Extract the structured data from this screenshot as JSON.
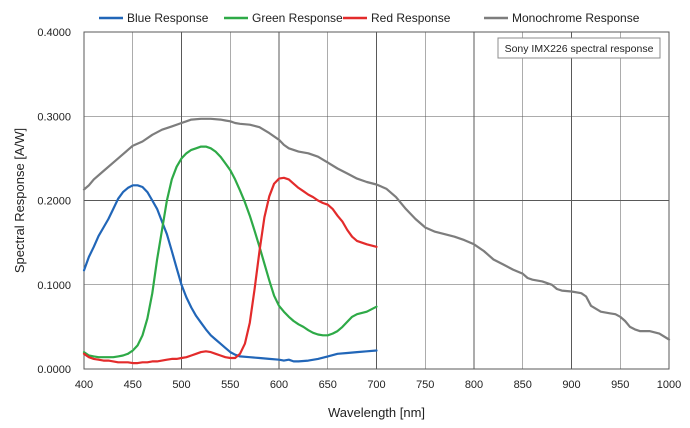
{
  "chart_data": {
    "type": "line",
    "title": "",
    "annotation": "Sony IMX226 spectral response",
    "xlabel": "Wavelength [nm]",
    "ylabel": "Spectral Response [A/W]",
    "xlim": [
      400,
      1000
    ],
    "ylim": [
      0,
      0.4
    ],
    "x_ticks": [
      400,
      450,
      500,
      550,
      600,
      650,
      700,
      750,
      800,
      850,
      900,
      950,
      1000
    ],
    "y_ticks": [
      0,
      0.1,
      0.2,
      0.3,
      0.4
    ],
    "x_tick_labels": [
      "400",
      "450",
      "500",
      "550",
      "600",
      "650",
      "700",
      "750",
      "800",
      "850",
      "900",
      "950",
      "1000"
    ],
    "y_tick_labels": [
      "0.0000",
      "0.1000",
      "0.2000",
      "0.3000",
      "0.4000"
    ],
    "grid": true,
    "legend_position": "top",
    "series": [
      {
        "name": "Blue Response",
        "color": "#2166b8",
        "points": [
          [
            400,
            0.117
          ],
          [
            405,
            0.133
          ],
          [
            410,
            0.145
          ],
          [
            415,
            0.158
          ],
          [
            420,
            0.168
          ],
          [
            425,
            0.178
          ],
          [
            430,
            0.19
          ],
          [
            435,
            0.202
          ],
          [
            440,
            0.21
          ],
          [
            445,
            0.215
          ],
          [
            450,
            0.218
          ],
          [
            455,
            0.218
          ],
          [
            460,
            0.216
          ],
          [
            465,
            0.21
          ],
          [
            470,
            0.2
          ],
          [
            475,
            0.19
          ],
          [
            480,
            0.175
          ],
          [
            485,
            0.16
          ],
          [
            490,
            0.14
          ],
          [
            495,
            0.12
          ],
          [
            500,
            0.1
          ],
          [
            505,
            0.085
          ],
          [
            510,
            0.073
          ],
          [
            515,
            0.063
          ],
          [
            520,
            0.055
          ],
          [
            525,
            0.047
          ],
          [
            530,
            0.04
          ],
          [
            535,
            0.035
          ],
          [
            540,
            0.03
          ],
          [
            545,
            0.025
          ],
          [
            550,
            0.02
          ],
          [
            555,
            0.017
          ],
          [
            560,
            0.015
          ],
          [
            570,
            0.014
          ],
          [
            580,
            0.013
          ],
          [
            590,
            0.012
          ],
          [
            600,
            0.011
          ],
          [
            605,
            0.01
          ],
          [
            610,
            0.011
          ],
          [
            615,
            0.009
          ],
          [
            620,
            0.009
          ],
          [
            630,
            0.01
          ],
          [
            640,
            0.012
          ],
          [
            650,
            0.015
          ],
          [
            660,
            0.018
          ],
          [
            670,
            0.019
          ],
          [
            680,
            0.02
          ],
          [
            690,
            0.021
          ],
          [
            700,
            0.022
          ]
        ]
      },
      {
        "name": "Green Response",
        "color": "#2eaa47",
        "points": [
          [
            400,
            0.02
          ],
          [
            405,
            0.016
          ],
          [
            410,
            0.015
          ],
          [
            415,
            0.014
          ],
          [
            420,
            0.014
          ],
          [
            425,
            0.014
          ],
          [
            430,
            0.014
          ],
          [
            435,
            0.015
          ],
          [
            440,
            0.016
          ],
          [
            445,
            0.018
          ],
          [
            450,
            0.022
          ],
          [
            455,
            0.028
          ],
          [
            460,
            0.04
          ],
          [
            465,
            0.06
          ],
          [
            470,
            0.09
          ],
          [
            475,
            0.13
          ],
          [
            480,
            0.165
          ],
          [
            485,
            0.2
          ],
          [
            490,
            0.225
          ],
          [
            495,
            0.24
          ],
          [
            500,
            0.25
          ],
          [
            505,
            0.256
          ],
          [
            510,
            0.26
          ],
          [
            515,
            0.262
          ],
          [
            520,
            0.264
          ],
          [
            525,
            0.264
          ],
          [
            530,
            0.262
          ],
          [
            535,
            0.258
          ],
          [
            540,
            0.252
          ],
          [
            545,
            0.244
          ],
          [
            550,
            0.236
          ],
          [
            555,
            0.225
          ],
          [
            560,
            0.212
          ],
          [
            565,
            0.198
          ],
          [
            570,
            0.182
          ],
          [
            575,
            0.164
          ],
          [
            580,
            0.145
          ],
          [
            585,
            0.125
          ],
          [
            590,
            0.105
          ],
          [
            595,
            0.087
          ],
          [
            600,
            0.075
          ],
          [
            605,
            0.068
          ],
          [
            610,
            0.062
          ],
          [
            615,
            0.057
          ],
          [
            620,
            0.053
          ],
          [
            625,
            0.05
          ],
          [
            630,
            0.046
          ],
          [
            635,
            0.043
          ],
          [
            640,
            0.041
          ],
          [
            645,
            0.04
          ],
          [
            650,
            0.04
          ],
          [
            655,
            0.042
          ],
          [
            660,
            0.045
          ],
          [
            665,
            0.05
          ],
          [
            670,
            0.056
          ],
          [
            675,
            0.062
          ],
          [
            680,
            0.065
          ],
          [
            690,
            0.068
          ],
          [
            700,
            0.074
          ]
        ]
      },
      {
        "name": "Red Response",
        "color": "#e32b2b",
        "points": [
          [
            400,
            0.018
          ],
          [
            405,
            0.014
          ],
          [
            410,
            0.012
          ],
          [
            415,
            0.011
          ],
          [
            420,
            0.01
          ],
          [
            425,
            0.01
          ],
          [
            430,
            0.009
          ],
          [
            435,
            0.008
          ],
          [
            440,
            0.008
          ],
          [
            445,
            0.008
          ],
          [
            450,
            0.007
          ],
          [
            455,
            0.007
          ],
          [
            460,
            0.008
          ],
          [
            465,
            0.008
          ],
          [
            470,
            0.009
          ],
          [
            475,
            0.009
          ],
          [
            480,
            0.01
          ],
          [
            485,
            0.011
          ],
          [
            490,
            0.012
          ],
          [
            495,
            0.012
          ],
          [
            500,
            0.013
          ],
          [
            505,
            0.014
          ],
          [
            510,
            0.016
          ],
          [
            515,
            0.018
          ],
          [
            520,
            0.02
          ],
          [
            525,
            0.021
          ],
          [
            530,
            0.02
          ],
          [
            535,
            0.018
          ],
          [
            540,
            0.016
          ],
          [
            545,
            0.014
          ],
          [
            550,
            0.013
          ],
          [
            555,
            0.013
          ],
          [
            560,
            0.018
          ],
          [
            565,
            0.03
          ],
          [
            570,
            0.055
          ],
          [
            575,
            0.095
          ],
          [
            580,
            0.14
          ],
          [
            585,
            0.18
          ],
          [
            590,
            0.205
          ],
          [
            595,
            0.22
          ],
          [
            600,
            0.226
          ],
          [
            605,
            0.227
          ],
          [
            610,
            0.225
          ],
          [
            615,
            0.22
          ],
          [
            620,
            0.215
          ],
          [
            625,
            0.211
          ],
          [
            630,
            0.207
          ],
          [
            635,
            0.204
          ],
          [
            640,
            0.2
          ],
          [
            645,
            0.197
          ],
          [
            650,
            0.195
          ],
          [
            655,
            0.19
          ],
          [
            660,
            0.182
          ],
          [
            665,
            0.175
          ],
          [
            670,
            0.165
          ],
          [
            675,
            0.157
          ],
          [
            680,
            0.152
          ],
          [
            690,
            0.148
          ],
          [
            700,
            0.145
          ]
        ]
      },
      {
        "name": "Monochrome Response",
        "color": "#7d7d7d",
        "points": [
          [
            400,
            0.213
          ],
          [
            405,
            0.218
          ],
          [
            410,
            0.225
          ],
          [
            420,
            0.235
          ],
          [
            430,
            0.245
          ],
          [
            440,
            0.255
          ],
          [
            450,
            0.265
          ],
          [
            460,
            0.27
          ],
          [
            470,
            0.278
          ],
          [
            480,
            0.284
          ],
          [
            490,
            0.288
          ],
          [
            500,
            0.292
          ],
          [
            505,
            0.294
          ],
          [
            510,
            0.296
          ],
          [
            520,
            0.297
          ],
          [
            530,
            0.297
          ],
          [
            540,
            0.296
          ],
          [
            545,
            0.295
          ],
          [
            550,
            0.294
          ],
          [
            555,
            0.292
          ],
          [
            560,
            0.291
          ],
          [
            570,
            0.29
          ],
          [
            580,
            0.287
          ],
          [
            590,
            0.28
          ],
          [
            600,
            0.272
          ],
          [
            605,
            0.266
          ],
          [
            610,
            0.262
          ],
          [
            620,
            0.258
          ],
          [
            630,
            0.256
          ],
          [
            640,
            0.252
          ],
          [
            650,
            0.245
          ],
          [
            660,
            0.238
          ],
          [
            670,
            0.232
          ],
          [
            680,
            0.226
          ],
          [
            690,
            0.222
          ],
          [
            700,
            0.219
          ],
          [
            710,
            0.214
          ],
          [
            720,
            0.204
          ],
          [
            730,
            0.19
          ],
          [
            740,
            0.178
          ],
          [
            750,
            0.168
          ],
          [
            760,
            0.163
          ],
          [
            770,
            0.16
          ],
          [
            780,
            0.157
          ],
          [
            790,
            0.153
          ],
          [
            800,
            0.148
          ],
          [
            810,
            0.14
          ],
          [
            820,
            0.13
          ],
          [
            830,
            0.124
          ],
          [
            840,
            0.118
          ],
          [
            850,
            0.113
          ],
          [
            855,
            0.108
          ],
          [
            860,
            0.106
          ],
          [
            870,
            0.104
          ],
          [
            880,
            0.1
          ],
          [
            885,
            0.095
          ],
          [
            890,
            0.093
          ],
          [
            900,
            0.092
          ],
          [
            910,
            0.09
          ],
          [
            915,
            0.086
          ],
          [
            920,
            0.075
          ],
          [
            930,
            0.068
          ],
          [
            940,
            0.066
          ],
          [
            945,
            0.065
          ],
          [
            950,
            0.062
          ],
          [
            955,
            0.057
          ],
          [
            960,
            0.05
          ],
          [
            965,
            0.047
          ],
          [
            970,
            0.045
          ],
          [
            980,
            0.045
          ],
          [
            990,
            0.042
          ],
          [
            1000,
            0.035
          ]
        ]
      }
    ]
  }
}
